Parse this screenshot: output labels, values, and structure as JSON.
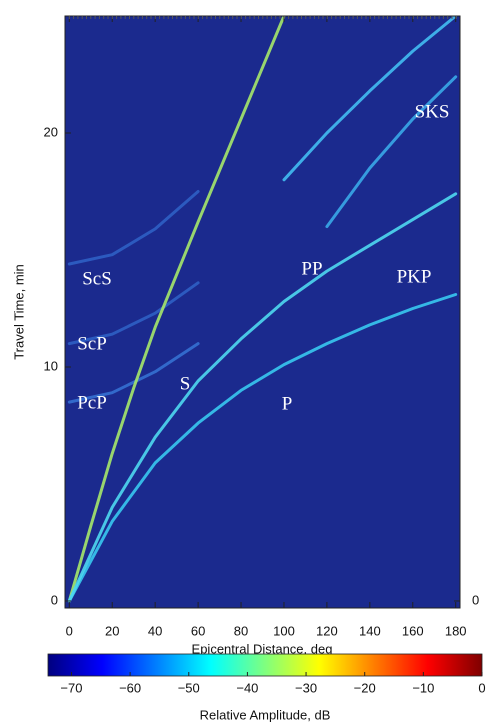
{
  "chart_data": {
    "type": "travel-time",
    "xlabel": "Epicentral Distance, deg",
    "ylabel": "Travel Time, min",
    "xlim": [
      -2,
      182
    ],
    "ylim": [
      -0.3,
      25
    ],
    "xticks": [
      0,
      20,
      40,
      60,
      80,
      100,
      120,
      140,
      160,
      180
    ],
    "yticks": [
      0,
      10,
      20
    ],
    "y2lim": [
      -0.3,
      25
    ],
    "y2ticks": [
      0
    ],
    "background": "#1b2a8e",
    "series": [
      {
        "name": "ScS",
        "color": "#2f5fc4",
        "x": [
          0,
          20,
          40,
          60
        ],
        "values": [
          14.4,
          14.8,
          15.9,
          17.5
        ]
      },
      {
        "name": "ScP",
        "color": "#2f5fc4",
        "x": [
          0,
          20,
          40,
          60
        ],
        "values": [
          11.0,
          11.4,
          12.3,
          13.6
        ]
      },
      {
        "name": "PcP",
        "color": "#3570d2",
        "x": [
          0,
          20,
          40,
          60
        ],
        "values": [
          8.5,
          8.9,
          9.8,
          11.0
        ]
      },
      {
        "name": "S",
        "color": "#a6e86a",
        "x": [
          0,
          10,
          20,
          30,
          40,
          60,
          80,
          100
        ],
        "values": [
          0,
          3.2,
          6.3,
          9.1,
          11.7,
          16.2,
          20.6,
          25
        ]
      },
      {
        "name": "P",
        "color": "#38c8f0",
        "x": [
          0,
          20,
          40,
          60,
          80,
          100,
          120,
          140,
          160,
          180
        ],
        "values": [
          0,
          3.4,
          5.9,
          7.6,
          9.0,
          10.1,
          11.0,
          11.8,
          12.5,
          13.1
        ]
      },
      {
        "name": "PP",
        "color": "#4fd8f0",
        "x": [
          0,
          20,
          40,
          60,
          80,
          100,
          120,
          140,
          160,
          180
        ],
        "values": [
          0,
          4.0,
          7.0,
          9.4,
          11.2,
          12.8,
          14.1,
          15.2,
          16.3,
          17.4
        ]
      },
      {
        "name": "PKP",
        "color": "#3aa8e8",
        "x": [
          120,
          140,
          160,
          180
        ],
        "values": [
          16.0,
          18.5,
          20.6,
          22.4
        ]
      },
      {
        "name": "SKS",
        "color": "#42bdf2",
        "x": [
          100,
          120,
          140,
          160,
          180
        ],
        "values": [
          18.0,
          20.0,
          21.8,
          23.5,
          25
        ]
      }
    ],
    "colorbar": {
      "label": "Relative Amplitude, dB",
      "colorscale": "jet",
      "clim": [
        -74,
        0
      ],
      "ticks": [
        {
          "value": -70,
          "label": "−70"
        },
        {
          "value": -60,
          "label": "−60"
        },
        {
          "value": -50,
          "label": "−50"
        },
        {
          "value": -40,
          "label": "−40"
        },
        {
          "value": -30,
          "label": "−30"
        },
        {
          "value": -20,
          "label": "−20"
        },
        {
          "value": -10,
          "label": "−10"
        },
        0
      ]
    }
  }
}
